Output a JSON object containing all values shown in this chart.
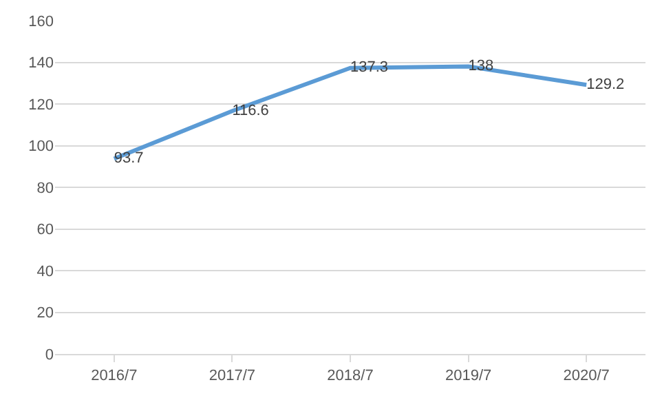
{
  "chart_data": {
    "type": "line",
    "categories": [
      "2016/7",
      "2017/7",
      "2018/7",
      "2019/7",
      "2020/7"
    ],
    "series": [
      {
        "color": "#5b9bd5",
        "values": [
          93.7,
          116.6,
          137.3,
          138,
          129.2
        ]
      }
    ],
    "ylim": [
      0,
      160
    ],
    "yticks": [
      0,
      20,
      40,
      60,
      80,
      100,
      120,
      140,
      160
    ],
    "grid": "y",
    "data_labels": true,
    "marker": "none",
    "line_style": "solid"
  }
}
